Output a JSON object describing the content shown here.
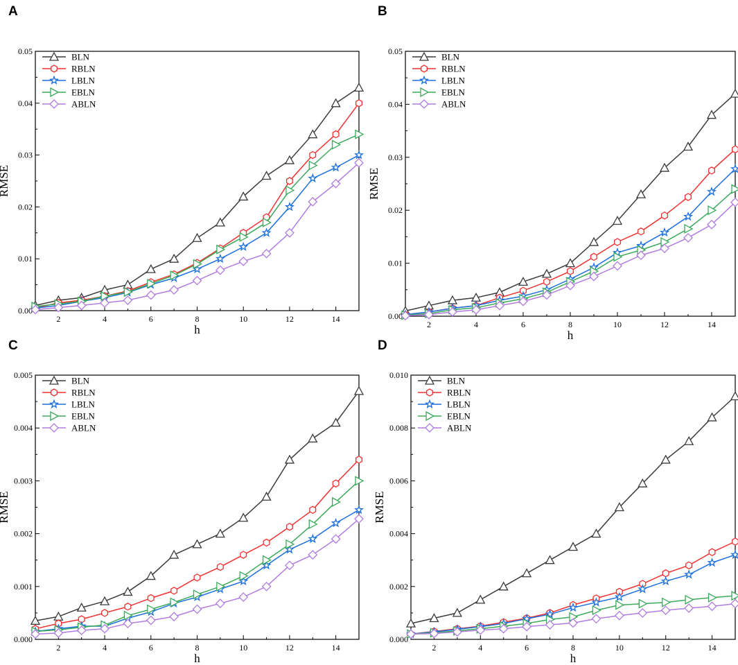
{
  "colors": {
    "BLN": "#3a3a3a",
    "RBLN": "#f03030",
    "LBLN": "#1a6fe0",
    "EBLN": "#3aaa5a",
    "ABLN": "#b07ce0"
  },
  "markers": {
    "BLN": "triangle-up-icon",
    "RBLN": "hexagon-icon",
    "LBLN": "star-icon",
    "EBLN": "triangle-right-icon",
    "ABLN": "diamond-icon"
  },
  "chart_data": [
    {
      "panel": "A",
      "type": "line",
      "xlabel": "h",
      "ylabel": "RMSE",
      "xlim": [
        1,
        15
      ],
      "ylim": [
        0,
        0.05
      ],
      "xticks": [
        "2",
        "4",
        "6",
        "8",
        "10",
        "12",
        "14"
      ],
      "yticks": [
        "0.00",
        "0.01",
        "0.02",
        "0.03",
        "0.04",
        "0.05"
      ],
      "legend_position": "top-left",
      "x": [
        1,
        2,
        3,
        4,
        5,
        6,
        7,
        8,
        9,
        10,
        11,
        12,
        13,
        14,
        15
      ],
      "series": [
        {
          "name": "BLN",
          "values": [
            0.001,
            0.002,
            0.0025,
            0.004,
            0.005,
            0.008,
            0.01,
            0.014,
            0.017,
            0.022,
            0.026,
            0.029,
            0.034,
            0.04,
            0.043
          ]
        },
        {
          "name": "RBLN",
          "values": [
            0.0005,
            0.0015,
            0.002,
            0.0028,
            0.0038,
            0.0055,
            0.007,
            0.0092,
            0.012,
            0.015,
            0.018,
            0.025,
            0.03,
            0.034,
            0.04
          ]
        },
        {
          "name": "LBLN",
          "values": [
            0.0005,
            0.001,
            0.0018,
            0.0025,
            0.0035,
            0.005,
            0.0063,
            0.008,
            0.01,
            0.0123,
            0.015,
            0.02,
            0.0255,
            0.0276,
            0.03
          ]
        },
        {
          "name": "EBLN",
          "values": [
            0.0008,
            0.0013,
            0.0018,
            0.0028,
            0.0036,
            0.0052,
            0.0068,
            0.009,
            0.0118,
            0.0142,
            0.017,
            0.0232,
            0.028,
            0.032,
            0.034
          ]
        },
        {
          "name": "ABLN",
          "values": [
            0.0002,
            0.0006,
            0.001,
            0.0015,
            0.002,
            0.003,
            0.004,
            0.0058,
            0.0078,
            0.0095,
            0.011,
            0.015,
            0.021,
            0.0245,
            0.0285
          ]
        }
      ]
    },
    {
      "panel": "B",
      "type": "line",
      "xlabel": "h",
      "ylabel": "RMSE",
      "xlim": [
        1,
        15
      ],
      "ylim": [
        0,
        0.05
      ],
      "xticks": [
        "2",
        "4",
        "6",
        "8",
        "10",
        "12",
        "14"
      ],
      "yticks": [
        "0.00",
        "0.01",
        "0.02",
        "0.03",
        "0.04",
        "0.05"
      ],
      "legend_position": "top-left",
      "x": [
        1,
        2,
        3,
        4,
        5,
        6,
        7,
        8,
        9,
        10,
        11,
        12,
        13,
        14,
        15
      ],
      "series": [
        {
          "name": "BLN",
          "values": [
            0.001,
            0.002,
            0.003,
            0.0035,
            0.0045,
            0.0065,
            0.008,
            0.01,
            0.014,
            0.018,
            0.023,
            0.028,
            0.032,
            0.038,
            0.042
          ]
        },
        {
          "name": "RBLN",
          "values": [
            0.0003,
            0.0008,
            0.0015,
            0.002,
            0.0035,
            0.0048,
            0.0065,
            0.0085,
            0.0112,
            0.014,
            0.016,
            0.019,
            0.0225,
            0.0275,
            0.0315
          ]
        },
        {
          "name": "LBLN",
          "values": [
            0.0003,
            0.0008,
            0.0015,
            0.002,
            0.003,
            0.0038,
            0.005,
            0.007,
            0.0092,
            0.012,
            0.0133,
            0.0158,
            0.0188,
            0.0235,
            0.0278
          ]
        },
        {
          "name": "EBLN",
          "values": [
            0.0002,
            0.0005,
            0.0012,
            0.0016,
            0.0025,
            0.0033,
            0.0045,
            0.0065,
            0.0085,
            0.0112,
            0.0125,
            0.014,
            0.0165,
            0.02,
            0.024
          ]
        },
        {
          "name": "ABLN",
          "values": [
            0.0001,
            0.0003,
            0.0008,
            0.0012,
            0.002,
            0.0028,
            0.004,
            0.0058,
            0.0075,
            0.0095,
            0.0115,
            0.0128,
            0.0148,
            0.0173,
            0.0215
          ]
        }
      ]
    },
    {
      "panel": "C",
      "type": "line",
      "xlabel": "h",
      "ylabel": "RMSE",
      "xlim": [
        1,
        15
      ],
      "ylim": [
        0,
        0.005
      ],
      "xticks": [
        "2",
        "4",
        "6",
        "8",
        "10",
        "12",
        "14"
      ],
      "yticks": [
        "0.000",
        "0.001",
        "0.002",
        "0.003",
        "0.004",
        "0.005"
      ],
      "legend_position": "top-left",
      "x": [
        1,
        2,
        3,
        4,
        5,
        6,
        7,
        8,
        9,
        10,
        11,
        12,
        13,
        14,
        15
      ],
      "series": [
        {
          "name": "BLN",
          "values": [
            0.00035,
            0.00043,
            0.0006,
            0.00072,
            0.0009,
            0.0012,
            0.0016,
            0.0018,
            0.002,
            0.0023,
            0.0027,
            0.0034,
            0.0038,
            0.0041,
            0.0047
          ]
        },
        {
          "name": "RBLN",
          "values": [
            0.0002,
            0.0003,
            0.00038,
            0.0005,
            0.00062,
            0.00078,
            0.00092,
            0.00117,
            0.00137,
            0.0016,
            0.00183,
            0.00213,
            0.00245,
            0.00295,
            0.0034
          ]
        },
        {
          "name": "LBLN",
          "values": [
            0.00015,
            0.0002,
            0.00025,
            0.00025,
            0.0004,
            0.00052,
            0.00068,
            0.0008,
            0.00095,
            0.0011,
            0.0014,
            0.0017,
            0.0019,
            0.0022,
            0.00245
          ]
        },
        {
          "name": "EBLN",
          "values": [
            0.00015,
            0.00018,
            0.00023,
            0.00027,
            0.00045,
            0.00057,
            0.0007,
            0.00085,
            0.001,
            0.0012,
            0.0015,
            0.0018,
            0.00218,
            0.0026,
            0.003
          ]
        },
        {
          "name": "ABLN",
          "values": [
            0.0001,
            0.00012,
            0.00017,
            0.0002,
            0.0003,
            0.00036,
            0.00043,
            0.00057,
            0.00068,
            0.0008,
            0.001,
            0.0014,
            0.0016,
            0.0019,
            0.00228
          ]
        }
      ]
    },
    {
      "panel": "D",
      "type": "line",
      "xlabel": "h",
      "ylabel": "RMSE",
      "xlim": [
        1,
        15
      ],
      "ylim": [
        0,
        0.01
      ],
      "xticks": [
        "2",
        "4",
        "6",
        "8",
        "10",
        "12",
        "14"
      ],
      "yticks": [
        "0.000",
        "0.002",
        "0.004",
        "0.006",
        "0.008",
        "0.010"
      ],
      "legend_position": "top-left",
      "x": [
        1,
        2,
        3,
        4,
        5,
        6,
        7,
        8,
        9,
        10,
        11,
        12,
        13,
        14,
        15
      ],
      "series": [
        {
          "name": "BLN",
          "values": [
            0.0006,
            0.0008,
            0.001,
            0.0015,
            0.002,
            0.0025,
            0.003,
            0.0035,
            0.004,
            0.005,
            0.0059,
            0.0068,
            0.0075,
            0.0084,
            0.0092
          ]
        },
        {
          "name": "RBLN",
          "values": [
            0.0002,
            0.0003,
            0.0004,
            0.0005,
            0.00065,
            0.0008,
            0.001,
            0.0013,
            0.00155,
            0.0018,
            0.0021,
            0.0025,
            0.0028,
            0.0033,
            0.0037
          ]
        },
        {
          "name": "LBLN",
          "values": [
            0.0002,
            0.00028,
            0.00038,
            0.00048,
            0.0006,
            0.00078,
            0.00095,
            0.0012,
            0.0014,
            0.0016,
            0.0019,
            0.0022,
            0.00245,
            0.0029,
            0.0032
          ]
        },
        {
          "name": "EBLN",
          "values": [
            0.0002,
            0.00025,
            0.00032,
            0.0004,
            0.0005,
            0.0006,
            0.00075,
            0.00085,
            0.0011,
            0.0013,
            0.00135,
            0.0014,
            0.0015,
            0.00158,
            0.00165
          ]
        },
        {
          "name": "ABLN",
          "values": [
            0.0002,
            0.00022,
            0.00028,
            0.00035,
            0.0004,
            0.00048,
            0.00055,
            0.00062,
            0.00078,
            0.0009,
            0.001,
            0.0011,
            0.00118,
            0.00125,
            0.00135
          ]
        }
      ]
    }
  ]
}
